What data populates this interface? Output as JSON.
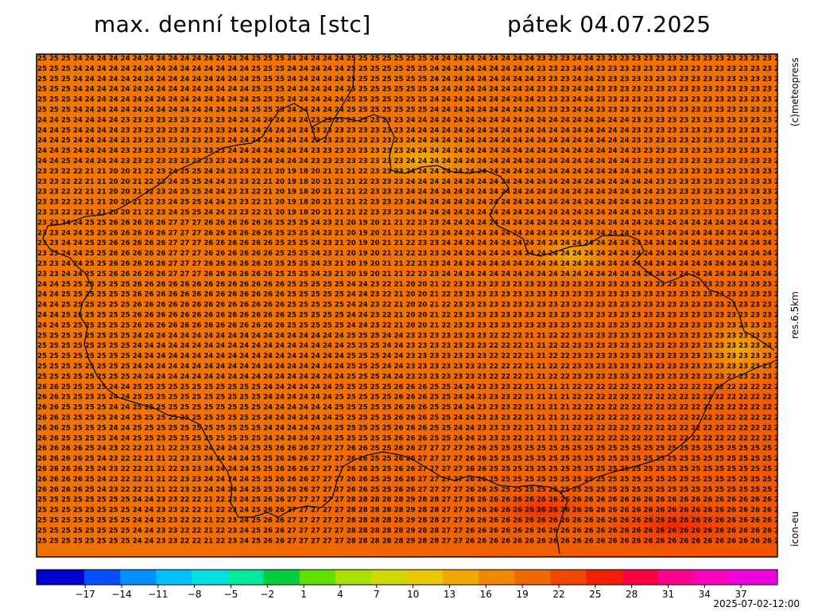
{
  "title": {
    "left": "max. denní teplota [stc]",
    "right": "pátek 04.07.2025"
  },
  "side_labels": {
    "credit": "(c)meteopress",
    "resolution": "res.6.5km",
    "model": "icon-eu"
  },
  "timestamp": "2025-07-02-12:00",
  "colorbar": {
    "ticks": [
      "−17",
      "−14",
      "−11",
      "−8",
      "−5",
      "−2",
      "1",
      "4",
      "7",
      "10",
      "13",
      "16",
      "19",
      "22",
      "25",
      "28",
      "31",
      "34",
      "37"
    ],
    "tick_values": [
      -17,
      -14,
      -11,
      -8,
      -5,
      -2,
      1,
      4,
      7,
      10,
      13,
      16,
      19,
      22,
      25,
      28,
      31,
      34,
      37
    ],
    "min": -21,
    "max": 40,
    "colors": [
      "#0000d0",
      "#0050ff",
      "#0090ff",
      "#00c0ff",
      "#00e0e0",
      "#00e8a0",
      "#00d040",
      "#60e000",
      "#a8e000",
      "#d0d800",
      "#e8c800",
      "#f0a800",
      "#f08800",
      "#f06800",
      "#f04800",
      "#f02000",
      "#ff0040",
      "#ff0090",
      "#ff00c0",
      "#f000e0"
    ]
  },
  "grid_values": {
    "row_a": "25 25 25 24 24 24 24 24 24 24 24 24 24 24 24 24 24 24 25 25 25 24 24 24 24 24 25 25 25 25 25 25 25 24 24 24 24 24 24 24 24 24 23 23 23 24 24 23 23 23 23 23 23 23 23 23 23 23 23 23 23 23 23 23 23 23 23 23 23 23 23",
    "row_b": "24 24 25 24 24 24 24 23 23 23 23 23 23 23 23 23 24 24 24 24 24 24 24 23 23 23 23 23 23 23 23 24 24 24 24 24 24 24 24 24 24 24 24 24 24 24 24 24 24 24 23 23 23 23 23 23 23 23 23 23 23 23 23 23 23 23 23 23 23 23 23",
    "row_c": "23 23 22 22 21 21 20 20 21 22 23 24 25 25 24 24 23 23 22 21 20 19 18 20 21 21 21 22 23 23 23 24 24 24 24 24 24 24 24 24 24 24 24 24 24 24 24 24 24 24 24 24 23 23 23 23 23 23 23 23 23 23 23 23 23 23 23 23 23 23 23",
    "row_d": "23 23 24 24 25 25 26 26 26 26 26 27 27 27 26 26 26 26 26 26 25 25 25 24 23 21 20 19 20 21 21 22 23 23 24 24 24 24 24 24 24 24 24 24 24 24 24 24 24 24 24 24 24 24 24 24 24 24 24 24 24 24 24 24 24 24 24 24 24 24 24",
    "row_e": "24 24 25 25 25 25 25 25 26 26 26 26 26 26 26 26 26 26 26 26 26 25 25 25 25 25 24 24 23 22 21 20 20 21 22 23 23 23 23 23 23 23 23 23 23 23 23 23 23 23 23 23 23 23 23 23 23 23 23 23 23 23 23 23 23 23 23 23 23 23 23",
    "row_f": "25 25 25 25 25 25 25 25 24 24 24 24 24 24 24 24 24 24 24 24 24 24 24 24 24 24 25 25 25 24 24 23 23 23 23 23 23 23 22 22 22 21 21 22 22 23 23 23 23 23 23 23 23 23 23 23 23 23 23 23 23 23 23 23 23 23 23 23 23 23 23",
    "row_g": "26 26 25 25 25 25 24 24 25 25 25 25 25 25 25 25 25 25 25 24 24 24 24 24 24 25 25 25 25 25 26 26 26 25 25 24 24 23 23 23 22 21 21 21 21 22 22 22 22 22 22 22 22 22 22 22 22 22 22 22 22 22 22 22 22 22 22 22 22 22 22",
    "row_h": "26 26 26 26 25 24 23 22 22 21 21 22 23 23 24 24 24 24 25 25 26 26 26 27 27 27 26 26 25 25 26 26 27 27 27 27 26 26 25 25 25 25 25 25 25 25 25 25 25 25 25 25 25 25 25 25 25 25 25 25 25 25 25 25 25 25 25 25 25 25 25",
    "row_i": "25 25 25 25 25 25 25 25 24 24 23 23 22 22 21 22 23 24 25 26 26 27 27 27 27 27 28 28 28 28 28 29 28 28 27 27 26 26 26 26 26 26 26 26 26 26 26 26 26 26 26 26 26 26 26 26 26 26 26 26 26 26 26 26 26 26 26 26 26 26 26"
  }
}
